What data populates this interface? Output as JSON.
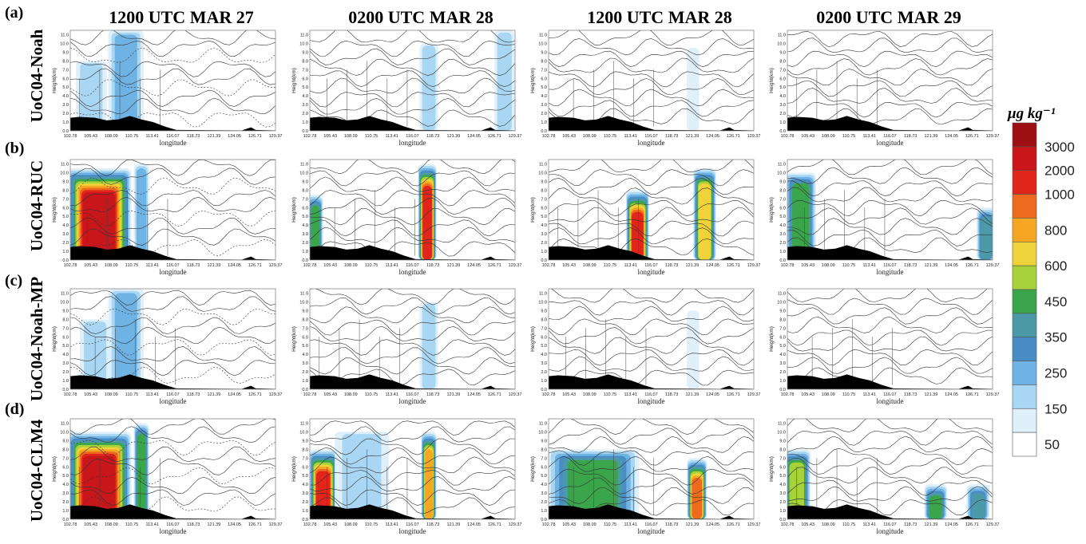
{
  "column_titles": [
    "1200 UTC MAR 27",
    "0200 UTC MAR 28",
    "1200 UTC MAR 28",
    "0200 UTC MAR 29"
  ],
  "rows": [
    {
      "tag": "(a)",
      "name": "UoC04-Noah"
    },
    {
      "tag": "(b)",
      "name": "UoC04-RUC"
    },
    {
      "tag": "(c)",
      "name": "UoC04-Noah-MP"
    },
    {
      "tag": "(d)",
      "name": "UoC04-CLM4"
    }
  ],
  "colorbar": {
    "unit": "μg kg⁻¹",
    "levels": [
      "50",
      "150",
      "250",
      "350",
      "450",
      "600",
      "800",
      "1000",
      "2000",
      "3000"
    ],
    "colors": [
      "#ffffff",
      "#dff0fb",
      "#a9d6f2",
      "#6fb3e4",
      "#4a8cc6",
      "#4c9aa8",
      "#3aa54a",
      "#a8d23a",
      "#f0d23a",
      "#f5a623",
      "#ee6a1f",
      "#e0261c",
      "#c8161a",
      "#9c1014"
    ]
  },
  "chart_data": {
    "type": "heatmap",
    "xlabel": "longitude",
    "ylabel": "Height(km)",
    "xticks": [
      "102.78",
      "105.43",
      "108.09",
      "110.75",
      "113.41",
      "116.07",
      "118.73",
      "121.39",
      "124.05",
      "126.71",
      "129.37"
    ],
    "yticks": [
      "0.0",
      "1.0",
      "2.0",
      "3.0",
      "4.0",
      "5.0",
      "6.0",
      "7.0",
      "8.0",
      "9.0",
      "10.0",
      "11.0"
    ],
    "xlim": [
      102.78,
      129.37
    ],
    "ylim": [
      0.0,
      11.5
    ],
    "panels": [
      {
        "row": 0,
        "col": 0,
        "blobs": [
          {
            "lon": 110.0,
            "w": 2.3,
            "ztop": 11.5,
            "v": 300
          },
          {
            "lon": 105.5,
            "w": 2.0,
            "ztop": 8.0,
            "v": 170
          }
        ]
      },
      {
        "row": 0,
        "col": 1,
        "blobs": [
          {
            "lon": 118.2,
            "w": 1.2,
            "ztop": 10.0,
            "v": 160
          },
          {
            "lon": 128.0,
            "w": 1.3,
            "ztop": 11.5,
            "v": 190
          }
        ]
      },
      {
        "row": 0,
        "col": 2,
        "blobs": [
          {
            "lon": 121.5,
            "w": 0.8,
            "ztop": 9.5,
            "v": 130
          }
        ]
      },
      {
        "row": 0,
        "col": 3,
        "blobs": []
      },
      {
        "row": 1,
        "col": 0,
        "blobs": [
          {
            "lon": 106.5,
            "w": 4.2,
            "ztop": 10.5,
            "v": 3200
          },
          {
            "lon": 112.0,
            "w": 1.0,
            "ztop": 11.0,
            "v": 300
          }
        ]
      },
      {
        "row": 1,
        "col": 1,
        "blobs": [
          {
            "lon": 118.0,
            "w": 1.2,
            "ztop": 11.0,
            "v": 2500
          },
          {
            "lon": 103.5,
            "w": 1.0,
            "ztop": 7.5,
            "v": 700
          }
        ]
      },
      {
        "row": 1,
        "col": 2,
        "blobs": [
          {
            "lon": 114.3,
            "w": 1.5,
            "ztop": 8.0,
            "v": 2600
          },
          {
            "lon": 123.0,
            "w": 1.5,
            "ztop": 10.5,
            "v": 1400
          }
        ]
      },
      {
        "row": 1,
        "col": 3,
        "blobs": [
          {
            "lon": 104.5,
            "w": 2.0,
            "ztop": 10.0,
            "v": 700
          },
          {
            "lon": 128.5,
            "w": 1.2,
            "ztop": 6.0,
            "v": 500
          }
        ]
      },
      {
        "row": 2,
        "col": 0,
        "blobs": [
          {
            "lon": 110.0,
            "w": 2.3,
            "ztop": 11.5,
            "v": 300
          },
          {
            "lon": 106.0,
            "w": 2.0,
            "ztop": 8.0,
            "v": 170
          }
        ]
      },
      {
        "row": 2,
        "col": 1,
        "blobs": [
          {
            "lon": 118.2,
            "w": 1.2,
            "ztop": 10.0,
            "v": 160
          }
        ]
      },
      {
        "row": 2,
        "col": 2,
        "blobs": [
          {
            "lon": 121.5,
            "w": 0.8,
            "ztop": 9.0,
            "v": 120
          }
        ]
      },
      {
        "row": 2,
        "col": 3,
        "blobs": []
      },
      {
        "row": 3,
        "col": 0,
        "blobs": [
          {
            "lon": 106.5,
            "w": 4.2,
            "ztop": 10.0,
            "v": 3200
          },
          {
            "lon": 112.0,
            "w": 1.0,
            "ztop": 11.0,
            "v": 600
          }
        ]
      },
      {
        "row": 3,
        "col": 1,
        "blobs": [
          {
            "lon": 104.5,
            "w": 1.8,
            "ztop": 8.0,
            "v": 2800
          },
          {
            "lon": 118.2,
            "w": 1.0,
            "ztop": 10.0,
            "v": 1800
          },
          {
            "lon": 109.5,
            "w": 3.5,
            "ztop": 10.0,
            "v": 200
          }
        ]
      },
      {
        "row": 3,
        "col": 2,
        "blobs": [
          {
            "lon": 108.5,
            "w": 6.0,
            "ztop": 8.0,
            "v": 600
          },
          {
            "lon": 122.0,
            "w": 1.3,
            "ztop": 7.0,
            "v": 2200
          }
        ]
      },
      {
        "row": 3,
        "col": 3,
        "blobs": [
          {
            "lon": 104.0,
            "w": 1.8,
            "ztop": 8.0,
            "v": 900
          },
          {
            "lon": 122.0,
            "w": 1.5,
            "ztop": 4.0,
            "v": 600
          },
          {
            "lon": 127.5,
            "w": 1.5,
            "ztop": 4.0,
            "v": 500
          }
        ]
      }
    ]
  }
}
